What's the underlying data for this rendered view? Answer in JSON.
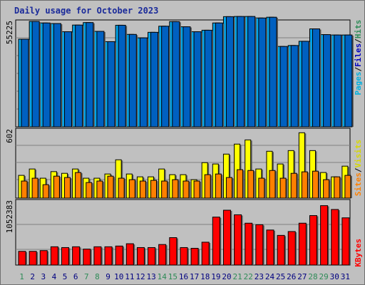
{
  "title": "Daily usage for October 2023",
  "colors": {
    "hits": "#00a4e8",
    "files": "#0060c0",
    "pages": "#00c8d8",
    "visits": "#ffff00",
    "sites": "#ff8000",
    "kbytes": "#ff0000",
    "legend_hits": "#2e8b57",
    "legend_files": "#0000c0",
    "legend_pages": "#00b0e0",
    "legend_visits": "#d8d800",
    "legend_sites": "#ff8000",
    "legend_kbytes": "#ff0000",
    "weekday_label": "#000080",
    "weekend_label": "#2e8b57"
  },
  "legend": {
    "top": [
      "Pages",
      "Files",
      "Hits"
    ],
    "middle": [
      "Sites",
      "Visits"
    ],
    "bottom": [
      "KBytes"
    ],
    "separator": "/"
  },
  "chart_data": [
    {
      "type": "bar",
      "panel": "hits-files",
      "ymax_label": "55225",
      "ymax": 55225,
      "categories": [
        "1",
        "2",
        "3",
        "4",
        "5",
        "6",
        "7",
        "8",
        "9",
        "10",
        "11",
        "12",
        "13",
        "14",
        "15",
        "16",
        "17",
        "18",
        "19",
        "20",
        "21",
        "22",
        "23",
        "24",
        "25",
        "26",
        "27",
        "28",
        "29",
        "30",
        "31"
      ],
      "weekend_days": [
        1,
        7,
        8,
        14,
        15,
        21,
        22,
        28,
        29
      ],
      "series": [
        {
          "name": "Hits",
          "values": [
            45900,
            55200,
            54400,
            54100,
            49800,
            53300,
            54600,
            50000,
            44600,
            53200,
            48400,
            46600,
            49500,
            52700,
            55100,
            52400,
            49800,
            50600,
            54400,
            57700,
            57800,
            57800,
            57000,
            57400,
            42100,
            42600,
            44800,
            51300,
            48300,
            48100,
            48100
          ]
        },
        {
          "name": "Files",
          "values": [
            45900,
            55200,
            54400,
            54100,
            49800,
            53300,
            54600,
            50000,
            44600,
            53200,
            48400,
            46600,
            49500,
            52700,
            55100,
            52400,
            49800,
            50600,
            54400,
            57700,
            57800,
            57800,
            57000,
            57400,
            42100,
            42600,
            44800,
            51300,
            48300,
            48100,
            48100
          ]
        }
      ]
    },
    {
      "type": "bar",
      "panel": "visits-sites",
      "ymax_label": "602",
      "ymax": 602,
      "categories": [
        "1",
        "2",
        "3",
        "4",
        "5",
        "6",
        "7",
        "8",
        "9",
        "10",
        "11",
        "12",
        "13",
        "14",
        "15",
        "16",
        "17",
        "18",
        "19",
        "20",
        "21",
        "22",
        "23",
        "24",
        "25",
        "26",
        "27",
        "28",
        "29",
        "30",
        "31"
      ],
      "series": [
        {
          "name": "Visits",
          "values": [
            200,
            256,
            175,
            233,
            218,
            256,
            175,
            175,
            212,
            337,
            212,
            187,
            187,
            256,
            206,
            206,
            162,
            312,
            300,
            387,
            475,
            512,
            256,
            412,
            300,
            418,
            575,
            418,
            225,
            187,
            281
          ]
        },
        {
          "name": "Sites",
          "values": [
            150,
            175,
            118,
            193,
            181,
            225,
            137,
            150,
            193,
            175,
            162,
            150,
            156,
            150,
            162,
            150,
            150,
            206,
            212,
            181,
            250,
            243,
            175,
            243,
            175,
            218,
            231,
            237,
            162,
            187,
            200
          ]
        }
      ]
    },
    {
      "type": "bar",
      "panel": "kbytes",
      "ymax_label": "1052383",
      "ymax": 1052383,
      "categories": [
        "1",
        "2",
        "3",
        "4",
        "5",
        "6",
        "7",
        "8",
        "9",
        "10",
        "11",
        "12",
        "13",
        "14",
        "15",
        "16",
        "17",
        "18",
        "19",
        "20",
        "21",
        "22",
        "23",
        "24",
        "25",
        "26",
        "27",
        "28",
        "29",
        "30",
        "31"
      ],
      "series": [
        {
          "name": "KBytes",
          "values": [
            225000,
            225000,
            237000,
            300000,
            287000,
            300000,
            262000,
            300000,
            300000,
            312000,
            350000,
            287000,
            287000,
            337000,
            450000,
            287000,
            275000,
            375000,
            787000,
            900000,
            825000,
            687000,
            662000,
            575000,
            487000,
            550000,
            687000,
            812000,
            975000,
            912000,
            775000
          ]
        }
      ]
    }
  ]
}
